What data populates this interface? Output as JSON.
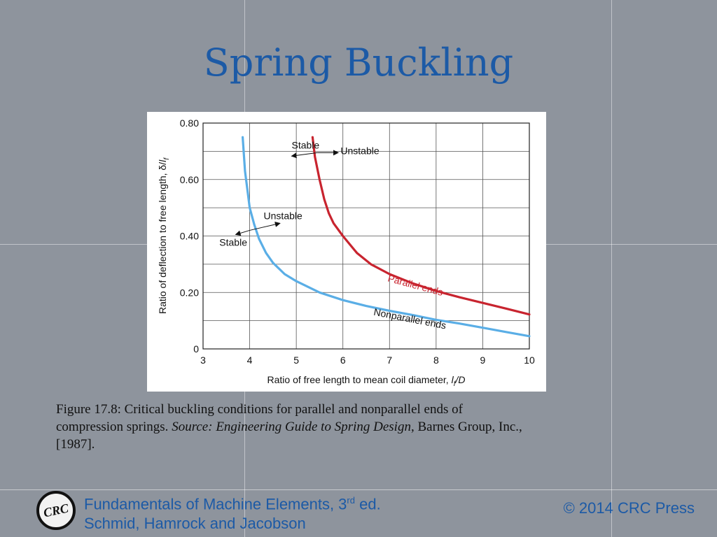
{
  "slide": {
    "title": "Spring Buckling"
  },
  "caption": {
    "line1": "Figure 17.8:  Critical buckling conditions for parallel and nonparallel ends of",
    "line2_prefix": "compression springs.  ",
    "line2_source_italic": "Source: Engineering Guide to Spring Design",
    "line2_suffix": ", Barnes Group, Inc.,",
    "line3": "[1987]."
  },
  "footer": {
    "logo_text": "CRC",
    "book_title_prefix": "Fundamentals of Machine Elements, 3",
    "book_title_sup": "rd",
    "book_title_suffix": " ed.",
    "authors": "Schmid, Hamrock and Jacobson",
    "copyright": "© 2014 CRC Press"
  },
  "colors": {
    "title": "#1c5aa6",
    "parallel": "#c8242f",
    "nonparallel": "#5aaee6",
    "background": "#8e949d"
  },
  "chart_data": {
    "type": "line",
    "xlabel": "Ratio of free length to mean coil diameter, l_f/D",
    "xlabel_prefix": "Ratio of free length to mean coil diameter, ",
    "xlabel_var": "l",
    "xlabel_sub": "f",
    "xlabel_tail": "/D",
    "ylabel_prefix": "Ratio of deflection to free length, δ/",
    "ylabel_var": "l",
    "ylabel_sub": "f",
    "xlim": [
      3,
      10
    ],
    "ylim": [
      0,
      0.8
    ],
    "xticks": [
      "3",
      "4",
      "5",
      "6",
      "7",
      "8",
      "9",
      "10"
    ],
    "yticks": [
      "0",
      "0.20",
      "0.40",
      "0.60",
      "0.80"
    ],
    "grid": true,
    "series": [
      {
        "name": "Parallel ends",
        "color": "#c8242f",
        "x": [
          5.35,
          5.4,
          5.5,
          5.6,
          5.7,
          5.8,
          6.0,
          6.3,
          6.6,
          7.0,
          7.5,
          8.0,
          8.5,
          9.0,
          9.5,
          10.0
        ],
        "y": [
          0.75,
          0.68,
          0.6,
          0.53,
          0.48,
          0.445,
          0.4,
          0.34,
          0.3,
          0.265,
          0.232,
          0.205,
          0.183,
          0.163,
          0.143,
          0.122
        ]
      },
      {
        "name": "Nonparallel ends",
        "color": "#5aaee6",
        "x": [
          3.85,
          3.9,
          4.0,
          4.1,
          4.2,
          4.35,
          4.5,
          4.75,
          5.0,
          5.5,
          6.0,
          6.5,
          7.0,
          7.5,
          8.0,
          8.5,
          9.0,
          9.5,
          10.0
        ],
        "y": [
          0.75,
          0.63,
          0.5,
          0.44,
          0.39,
          0.34,
          0.305,
          0.265,
          0.24,
          0.2,
          0.173,
          0.152,
          0.135,
          0.12,
          0.103,
          0.09,
          0.075,
          0.06,
          0.045
        ]
      }
    ],
    "annotations": [
      {
        "text": "Stable",
        "x": 4.9,
        "y": 0.71
      },
      {
        "text": "Unstable",
        "x": 5.95,
        "y": 0.69
      },
      {
        "text": "Unstable",
        "x": 4.3,
        "y": 0.46
      },
      {
        "text": "Stable",
        "x": 3.35,
        "y": 0.365
      },
      {
        "text": "Parallel ends",
        "x": 6.95,
        "y": 0.24
      },
      {
        "text": "Nonparallel ends",
        "x": 6.65,
        "y": 0.12
      }
    ]
  }
}
